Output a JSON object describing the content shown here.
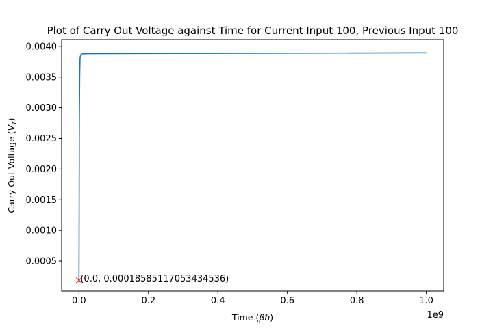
{
  "chart_data": {
    "type": "line",
    "title": "Plot of Carry Out Voltage against Time for Current Input 100, Previous Input 100",
    "xlabel": "Time (βℏ)",
    "ylabel": "Carry Out Voltage (V_T)",
    "x_offset_label": "1e9",
    "xlim": [
      -50000000,
      1050000000
    ],
    "ylim": [
      1e-05,
      0.00411
    ],
    "x_ticks": [
      0,
      200000000,
      400000000,
      600000000,
      800000000,
      1000000000
    ],
    "x_tick_labels": [
      "0.0",
      "0.2",
      "0.4",
      "0.6",
      "0.8",
      "1.0"
    ],
    "y_ticks": [
      0.0005,
      0.001,
      0.0015,
      0.002,
      0.0025,
      0.003,
      0.0035,
      0.004
    ],
    "y_tick_labels": [
      "0.0005",
      "0.0010",
      "0.0015",
      "0.0020",
      "0.0025",
      "0.0030",
      "0.0035",
      "0.0040"
    ],
    "grid": false,
    "series": [
      {
        "color": "#1f77b4",
        "x": [
          0,
          1000000,
          2000000,
          3000000,
          4000000,
          6000000,
          10000000,
          20000000,
          100000000,
          300000000,
          500000000,
          700000000,
          1000000000
        ],
        "y": [
          0.000186,
          0.0028,
          0.0035,
          0.0038,
          0.00384,
          0.00387,
          0.003878,
          0.00388,
          0.003882,
          0.003885,
          0.003888,
          0.00389,
          0.003895
        ]
      }
    ],
    "marker": {
      "x": 0.0,
      "y": 0.00018585117053434536,
      "symbol": "x",
      "color": "#d62728"
    },
    "annotation": "(0.0, 0.00018585117053434536)"
  }
}
